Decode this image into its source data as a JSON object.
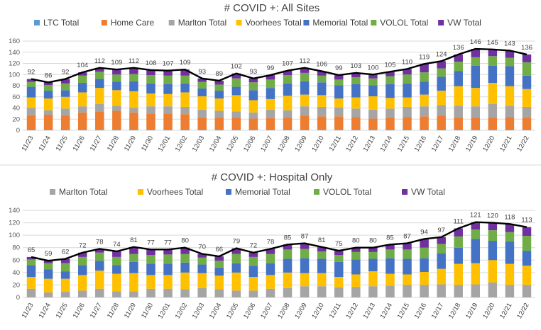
{
  "colors": {
    "LTC Total": "#5b9bd5",
    "Home Care": "#ed7d31",
    "Marlton Total": "#a5a5a5",
    "Voorhees Total": "#ffc000",
    "Memorial Total": "#4472c4",
    "VOLOL Total": "#70ad47",
    "VW Total": "#7030a0",
    "total_line": "#000000"
  },
  "chart_data": [
    {
      "type": "bar",
      "stacked": true,
      "title": "# COVID +: All Sites",
      "categories": [
        "11/23",
        "11/24",
        "11/25",
        "11/26",
        "11/27",
        "11/28",
        "11/29",
        "11/30",
        "12/01",
        "12/02",
        "12/03",
        "12/04",
        "12/05",
        "12/06",
        "12/07",
        "12/08",
        "12/09",
        "12/10",
        "12/11",
        "12/12",
        "12/13",
        "12/14",
        "12/15",
        "12/16",
        "12/17",
        "12/18",
        "12/19",
        "12/20",
        "12/21",
        "12/22"
      ],
      "ylim": [
        0,
        160
      ],
      "yticks": [
        0,
        20,
        40,
        60,
        80,
        100,
        120,
        140,
        160
      ],
      "legend_position": "top",
      "grid": true,
      "series": [
        {
          "name": "LTC Total",
          "values": [
            1,
            1,
            1,
            1,
            1,
            1,
            1,
            1,
            1,
            1,
            1,
            1,
            1,
            1,
            1,
            1,
            1,
            1,
            1,
            1,
            1,
            1,
            1,
            1,
            1,
            1,
            1,
            1,
            1,
            1
          ]
        },
        {
          "name": "Home Care",
          "values": [
            26,
            27,
            26,
            31,
            33,
            34,
            31,
            29,
            29,
            28,
            22,
            22,
            22,
            20,
            21,
            22,
            25,
            24,
            24,
            23,
            20,
            22,
            23,
            24,
            25,
            22,
            22,
            22,
            23,
            22
          ]
        },
        {
          "name": "Marlton Total",
          "values": [
            13,
            8,
            12,
            11,
            13,
            9,
            8,
            13,
            13,
            13,
            14,
            12,
            11,
            11,
            15,
            13,
            17,
            17,
            16,
            15,
            16,
            16,
            18,
            18,
            19,
            21,
            20,
            24,
            20,
            19
          ]
        },
        {
          "name": "Voorhees Total",
          "values": [
            19,
            21,
            21,
            25,
            29,
            28,
            30,
            23,
            22,
            26,
            24,
            22,
            29,
            22,
            19,
            26,
            21,
            21,
            16,
            20,
            24,
            19,
            17,
            21,
            26,
            35,
            33,
            38,
            35,
            32
          ]
        },
        {
          "name": "Memorial Total",
          "values": [
            19,
            14,
            12,
            17,
            16,
            15,
            18,
            18,
            18,
            16,
            14,
            14,
            15,
            18,
            20,
            22,
            24,
            23,
            24,
            24,
            20,
            25,
            25,
            23,
            25,
            27,
            40,
            31,
            36,
            24
          ]
        },
        {
          "name": "VOLOL Total",
          "values": [
            9,
            10,
            12,
            13,
            13,
            13,
            13,
            15,
            15,
            14,
            12,
            11,
            15,
            14,
            15,
            15,
            15,
            12,
            10,
            12,
            12,
            14,
            16,
            17,
            15,
            17,
            15,
            17,
            15,
            24
          ]
        },
        {
          "name": "VW Total",
          "values": [
            5,
            5,
            8,
            6,
            7,
            9,
            11,
            9,
            9,
            11,
            6,
            7,
            9,
            7,
            8,
            8,
            9,
            8,
            8,
            8,
            7,
            8,
            10,
            15,
            13,
            13,
            15,
            12,
            13,
            14
          ]
        }
      ],
      "total_line": [
        92,
        86,
        92,
        104,
        112,
        109,
        112,
        108,
        107,
        109,
        93,
        89,
        102,
        93,
        99,
        107,
        112,
        106,
        99,
        103,
        100,
        105,
        110,
        119,
        124,
        136,
        146,
        145,
        143,
        136
      ],
      "data_labels": [
        "92",
        "86",
        "92",
        "104",
        "112",
        "109",
        "112",
        "108",
        "107",
        "109",
        "93",
        "89",
        "102",
        "93",
        "99",
        "107",
        "112",
        "106",
        "99",
        "103",
        "100",
        "105",
        "110",
        "119",
        "124",
        "136",
        "146",
        "145",
        "143",
        "136"
      ]
    },
    {
      "type": "bar",
      "stacked": true,
      "title": "# COVID +: Hospital Only",
      "categories": [
        "11/23",
        "11/24",
        "11/25",
        "11/26",
        "11/27",
        "11/28",
        "11/29",
        "11/30",
        "12/01",
        "12/02",
        "12/03",
        "12/04",
        "12/05",
        "12/06",
        "12/07",
        "12/08",
        "12/09",
        "12/10",
        "12/11",
        "12/12",
        "12/13",
        "12/14",
        "12/15",
        "12/16",
        "12/17",
        "12/18",
        "12/19",
        "12/20",
        "12/21",
        "12/22"
      ],
      "ylim": [
        0,
        140
      ],
      "yticks": [
        0,
        20,
        40,
        60,
        80,
        100,
        120,
        140
      ],
      "legend_position": "top",
      "grid": true,
      "series": [
        {
          "name": "Marlton Total",
          "values": [
            14,
            8,
            9,
            11,
            14,
            10,
            10,
            14,
            14,
            13,
            15,
            13,
            11,
            11,
            14,
            15,
            18,
            18,
            16,
            17,
            18,
            19,
            20,
            20,
            21,
            20,
            21,
            24,
            20,
            20
          ]
        },
        {
          "name": "Voorhees Total",
          "values": [
            19,
            22,
            21,
            25,
            29,
            28,
            29,
            22,
            22,
            27,
            24,
            22,
            29,
            22,
            22,
            25,
            21,
            21,
            17,
            20,
            24,
            19,
            17,
            21,
            25,
            34,
            34,
            36,
            34,
            31
          ]
        },
        {
          "name": "Memorial Total",
          "values": [
            19,
            15,
            12,
            16,
            16,
            14,
            18,
            18,
            18,
            16,
            14,
            13,
            15,
            18,
            19,
            22,
            24,
            23,
            24,
            24,
            20,
            25,
            25,
            22,
            25,
            26,
            39,
            31,
            36,
            24
          ]
        },
        {
          "name": "VOLOL Total",
          "values": [
            9,
            10,
            13,
            13,
            13,
            13,
            13,
            14,
            15,
            14,
            11,
            11,
            15,
            14,
            15,
            15,
            15,
            12,
            11,
            12,
            11,
            14,
            15,
            17,
            15,
            18,
            15,
            17,
            15,
            24
          ]
        },
        {
          "name": "VW Total",
          "values": [
            4,
            4,
            7,
            7,
            6,
            9,
            11,
            9,
            8,
            10,
            6,
            7,
            9,
            7,
            8,
            8,
            9,
            7,
            7,
            7,
            7,
            8,
            10,
            14,
            11,
            13,
            12,
            12,
            13,
            14
          ]
        }
      ],
      "total_line": [
        65,
        59,
        62,
        72,
        78,
        74,
        81,
        77,
        77,
        80,
        70,
        66,
        79,
        72,
        78,
        85,
        87,
        81,
        75,
        80,
        80,
        85,
        87,
        94,
        97,
        111,
        121,
        120,
        118,
        113
      ],
      "data_labels": [
        "65",
        "59",
        "62",
        "72",
        "78",
        "74",
        "81",
        "77",
        "77",
        "80",
        "70",
        "66",
        "79",
        "72",
        "78",
        "85",
        "87",
        "81",
        "75",
        "80",
        "80",
        "85",
        "87",
        "94",
        "97",
        "111",
        "121",
        "120",
        "118",
        "113"
      ]
    }
  ]
}
